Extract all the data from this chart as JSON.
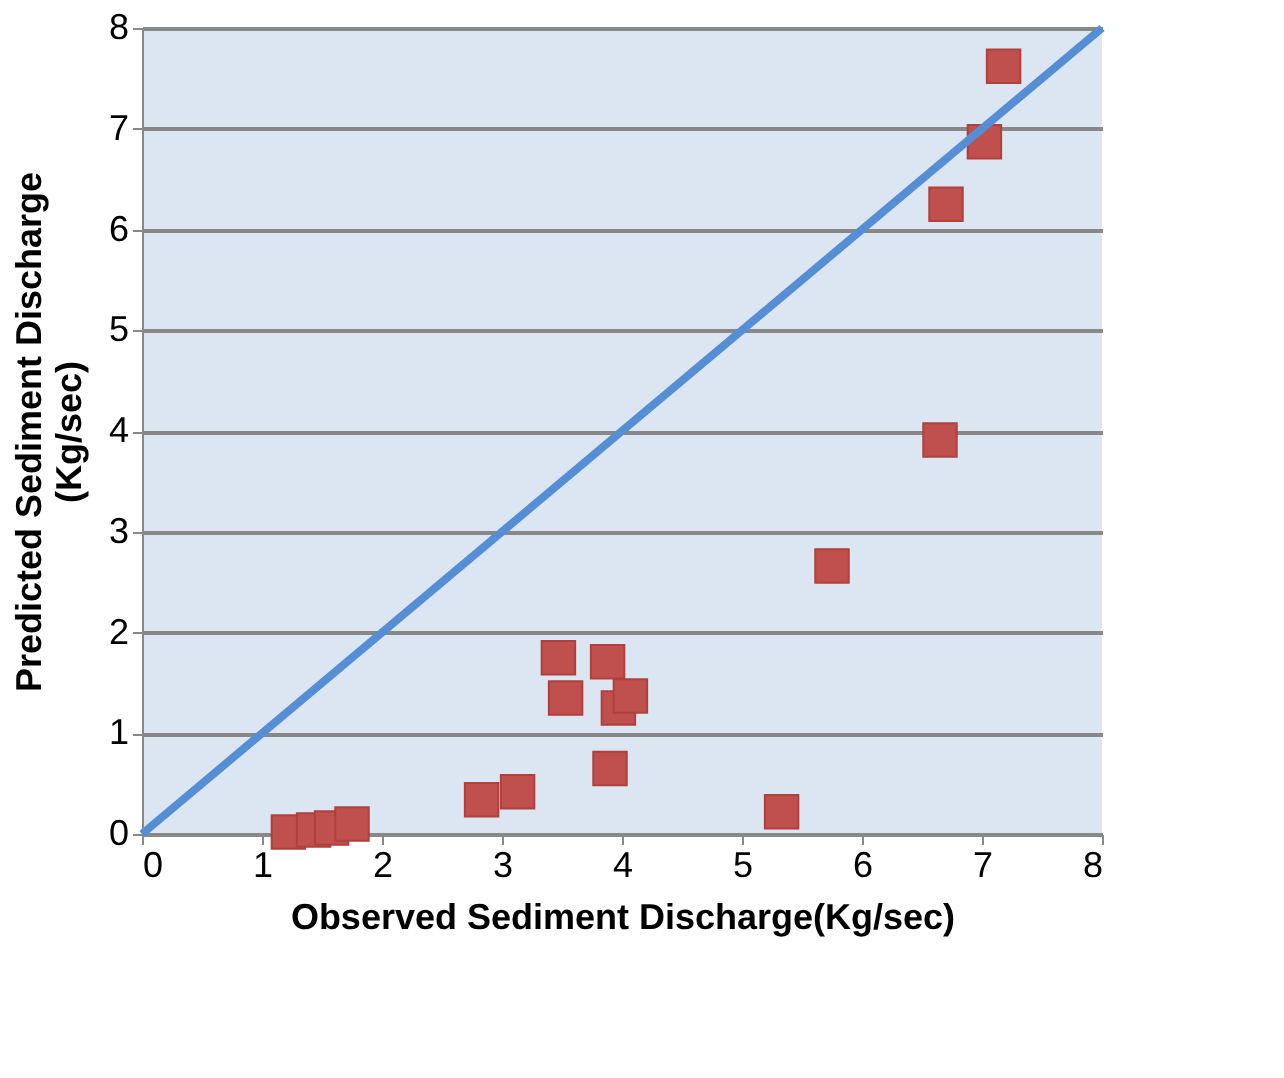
{
  "chart_data": {
    "type": "scatter",
    "xlabel": "Observed Sediment Discharge(Kg/sec)",
    "ylabel": "Predicted  Sediment Discharge (Kg/sec)",
    "xlim": [
      0,
      8
    ],
    "ylim": [
      0,
      8
    ],
    "xticks": [
      0,
      1,
      2,
      3,
      4,
      5,
      6,
      7,
      8
    ],
    "yticks": [
      0,
      1,
      2,
      3,
      4,
      5,
      6,
      7,
      8
    ],
    "grid": "y",
    "series": [
      {
        "marker": "square",
        "color": "#c0504d",
        "x": [
          1.22,
          1.43,
          1.58,
          1.75,
          2.83,
          3.13,
          3.47,
          3.53,
          3.88,
          3.97,
          4.07,
          3.9,
          5.33,
          5.75,
          6.65,
          6.7,
          7.02,
          7.18
        ],
        "values": [
          0.02,
          0.04,
          0.06,
          0.1,
          0.34,
          0.42,
          1.75,
          1.35,
          1.71,
          1.25,
          1.37,
          0.65,
          0.22,
          2.66,
          3.91,
          6.25,
          6.87,
          7.62
        ]
      },
      {
        "type": "line",
        "marker": "none",
        "color": "#558ed5",
        "x": [
          0,
          8
        ],
        "values": [
          0,
          8
        ]
      }
    ]
  }
}
